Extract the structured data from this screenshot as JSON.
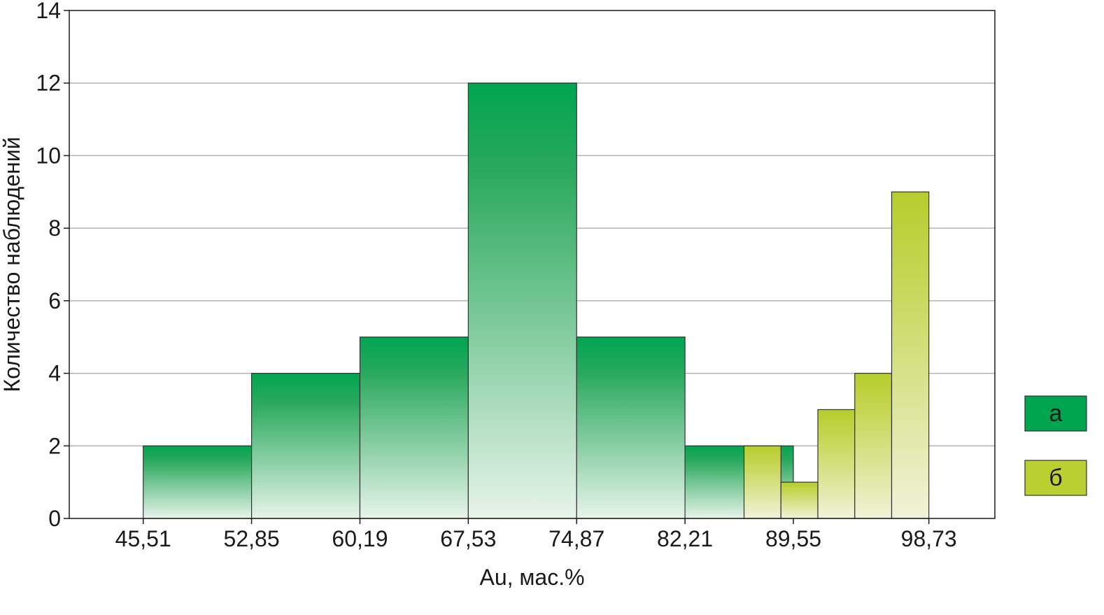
{
  "chart_data": {
    "type": "bar",
    "title": "",
    "xlabel": "Au, мас.%",
    "ylabel": "Количество наблюдений",
    "ylim": [
      0,
      14
    ],
    "xlim": [
      40.5,
      103.2
    ],
    "yticks": [
      0,
      2,
      4,
      6,
      8,
      10,
      12,
      14
    ],
    "xtick_labels": [
      {
        "value": 45.51,
        "label": "45,51"
      },
      {
        "value": 52.85,
        "label": "52,85"
      },
      {
        "value": 60.19,
        "label": "60,19"
      },
      {
        "value": 67.53,
        "label": "67,53"
      },
      {
        "value": 74.87,
        "label": "74,87"
      },
      {
        "value": 82.21,
        "label": "82,21"
      },
      {
        "value": 89.55,
        "label": "89,55"
      },
      {
        "value": 98.73,
        "label": "98,73"
      }
    ],
    "grid": true,
    "legend_position": "right",
    "series": [
      {
        "name": "а",
        "color": "#00a550",
        "bins": [
          {
            "start": 45.51,
            "end": 52.85,
            "count": 2
          },
          {
            "start": 52.85,
            "end": 60.19,
            "count": 4
          },
          {
            "start": 60.19,
            "end": 67.53,
            "count": 5
          },
          {
            "start": 67.53,
            "end": 74.87,
            "count": 12
          },
          {
            "start": 74.87,
            "end": 82.21,
            "count": 5
          },
          {
            "start": 82.21,
            "end": 89.55,
            "count": 2
          }
        ]
      },
      {
        "name": "б",
        "color": "#b9d033",
        "bins": [
          {
            "start": 86.21,
            "end": 88.71,
            "count": 2
          },
          {
            "start": 88.71,
            "end": 91.21,
            "count": 1
          },
          {
            "start": 91.21,
            "end": 93.71,
            "count": 3
          },
          {
            "start": 93.71,
            "end": 96.21,
            "count": 4
          },
          {
            "start": 96.21,
            "end": 98.73,
            "count": 9
          }
        ]
      }
    ]
  }
}
